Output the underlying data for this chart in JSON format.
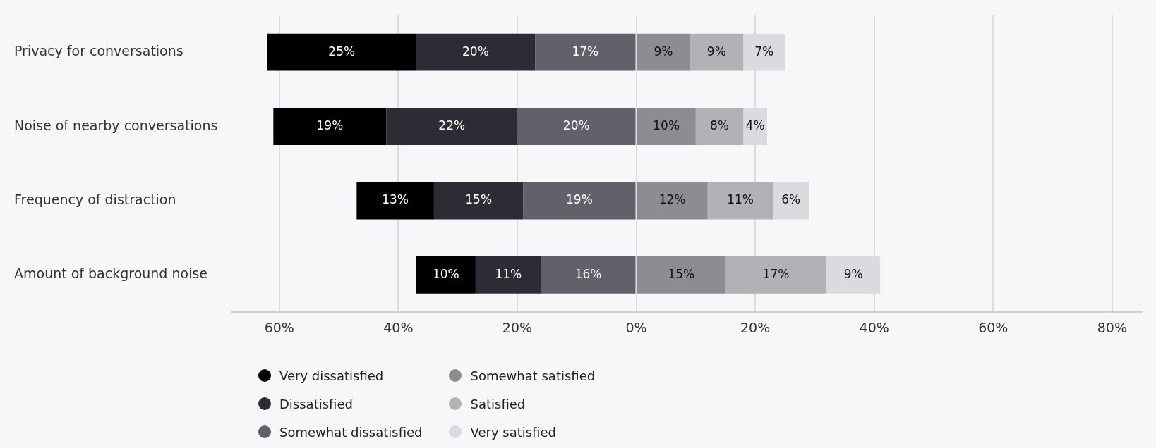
{
  "chart_data": {
    "type": "bar",
    "orientation": "horizontal",
    "categories": [
      "Privacy for conversations",
      "Noise of nearby conversations",
      "Frequency of distraction",
      "Amount of background noise"
    ],
    "series": [
      {
        "name": "Very dissatisfied",
        "color": "#000000",
        "base": [
          -62,
          -61,
          -47,
          -37
        ],
        "values": [
          25,
          19,
          13,
          10
        ],
        "value_labels": [
          "25%",
          "19%",
          "13%",
          "10%"
        ]
      },
      {
        "name": "Dissatisfied",
        "color": "#2d2c34",
        "base": [
          -37,
          -42,
          -34,
          -27
        ],
        "values": [
          20,
          22,
          15,
          11
        ],
        "value_labels": [
          "20%",
          "22%",
          "15%",
          "11%"
        ]
      },
      {
        "name": "Somewhat dissatisfied",
        "color": "#626169",
        "base": [
          -17,
          -20,
          -19,
          -16
        ],
        "values": [
          17,
          20,
          19,
          16
        ],
        "value_labels": [
          "17%",
          "20%",
          "19%",
          "16%"
        ]
      },
      {
        "name": "Somewhat satisfied",
        "color": "#8d8c92",
        "base": [
          0,
          0,
          0,
          0
        ],
        "values": [
          9,
          10,
          12,
          15
        ],
        "value_labels": [
          "9%",
          "10%",
          "12%",
          "15%"
        ]
      },
      {
        "name": "Satisfied",
        "color": "#b2b1b6",
        "base": [
          9,
          10,
          12,
          15
        ],
        "values": [
          9,
          8,
          11,
          17
        ],
        "value_labels": [
          "9%",
          "8%",
          "11%",
          "17%"
        ]
      },
      {
        "name": "Very satisfied",
        "color": "#dbdadf",
        "base": [
          18,
          18,
          23,
          32
        ],
        "values": [
          7,
          4,
          6,
          9
        ],
        "value_labels": [
          "7%",
          "4%",
          "6%",
          "9%"
        ]
      }
    ],
    "xlim": [
      -68,
      85
    ],
    "xticks": [
      {
        "value": -60,
        "label": "60%"
      },
      {
        "value": -40,
        "label": "40%"
      },
      {
        "value": -20,
        "label": "20%"
      },
      {
        "value": 0,
        "label": "0%"
      },
      {
        "value": 20,
        "label": "20%"
      },
      {
        "value": 40,
        "label": "40%"
      },
      {
        "value": 60,
        "label": "60%"
      },
      {
        "value": 80,
        "label": "80%"
      }
    ],
    "grid": "x",
    "legend": "bottom left"
  }
}
